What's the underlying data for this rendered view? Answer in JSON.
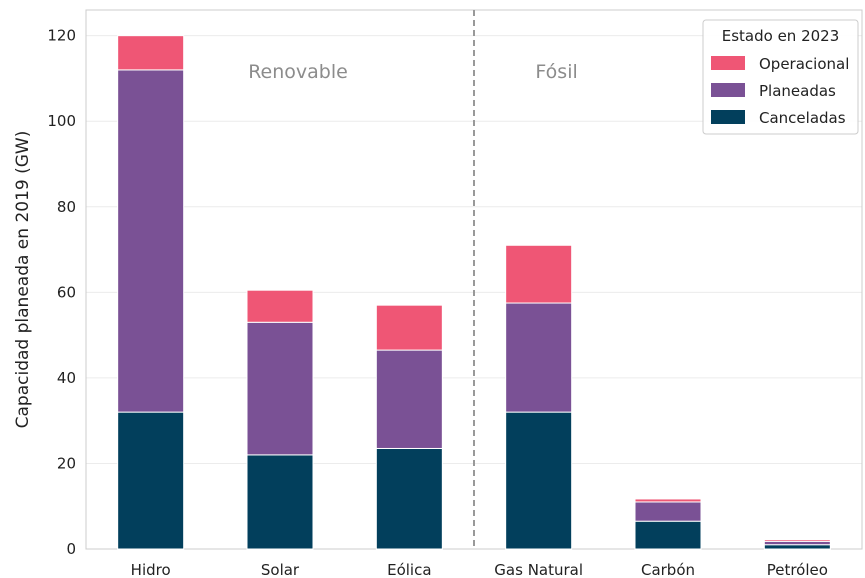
{
  "chart_data": {
    "type": "bar",
    "stacked": true,
    "categories": [
      "Hidro",
      "Solar",
      "Eólica",
      "Gas Natural",
      "Carbón",
      "Petróleo"
    ],
    "series": [
      {
        "name": "Canceladas",
        "values": [
          32,
          22,
          23.5,
          32,
          6.5,
          1
        ],
        "color": "#023f5c"
      },
      {
        "name": "Planeadas",
        "values": [
          80,
          31,
          23,
          25.5,
          4.5,
          0.8
        ],
        "color": "#7a5195"
      },
      {
        "name": "Operacional",
        "values": [
          8,
          7.5,
          10.5,
          13.5,
          0.7,
          0.4
        ],
        "color": "#ef5675"
      }
    ],
    "ylabel": "Capacidad planeada en 2019 (GW)",
    "xlabel": "",
    "ylim": [
      0,
      126
    ],
    "yticks": [
      0,
      20,
      40,
      60,
      80,
      100,
      120
    ],
    "grid": true,
    "groups": [
      {
        "label": "Renovable"
      },
      {
        "label": "Fósil"
      }
    ],
    "divider_after_category": 2,
    "legend": {
      "title": "Estado en 2023",
      "placement": "top-right",
      "order": [
        "Operacional",
        "Planeadas",
        "Canceladas"
      ]
    }
  }
}
